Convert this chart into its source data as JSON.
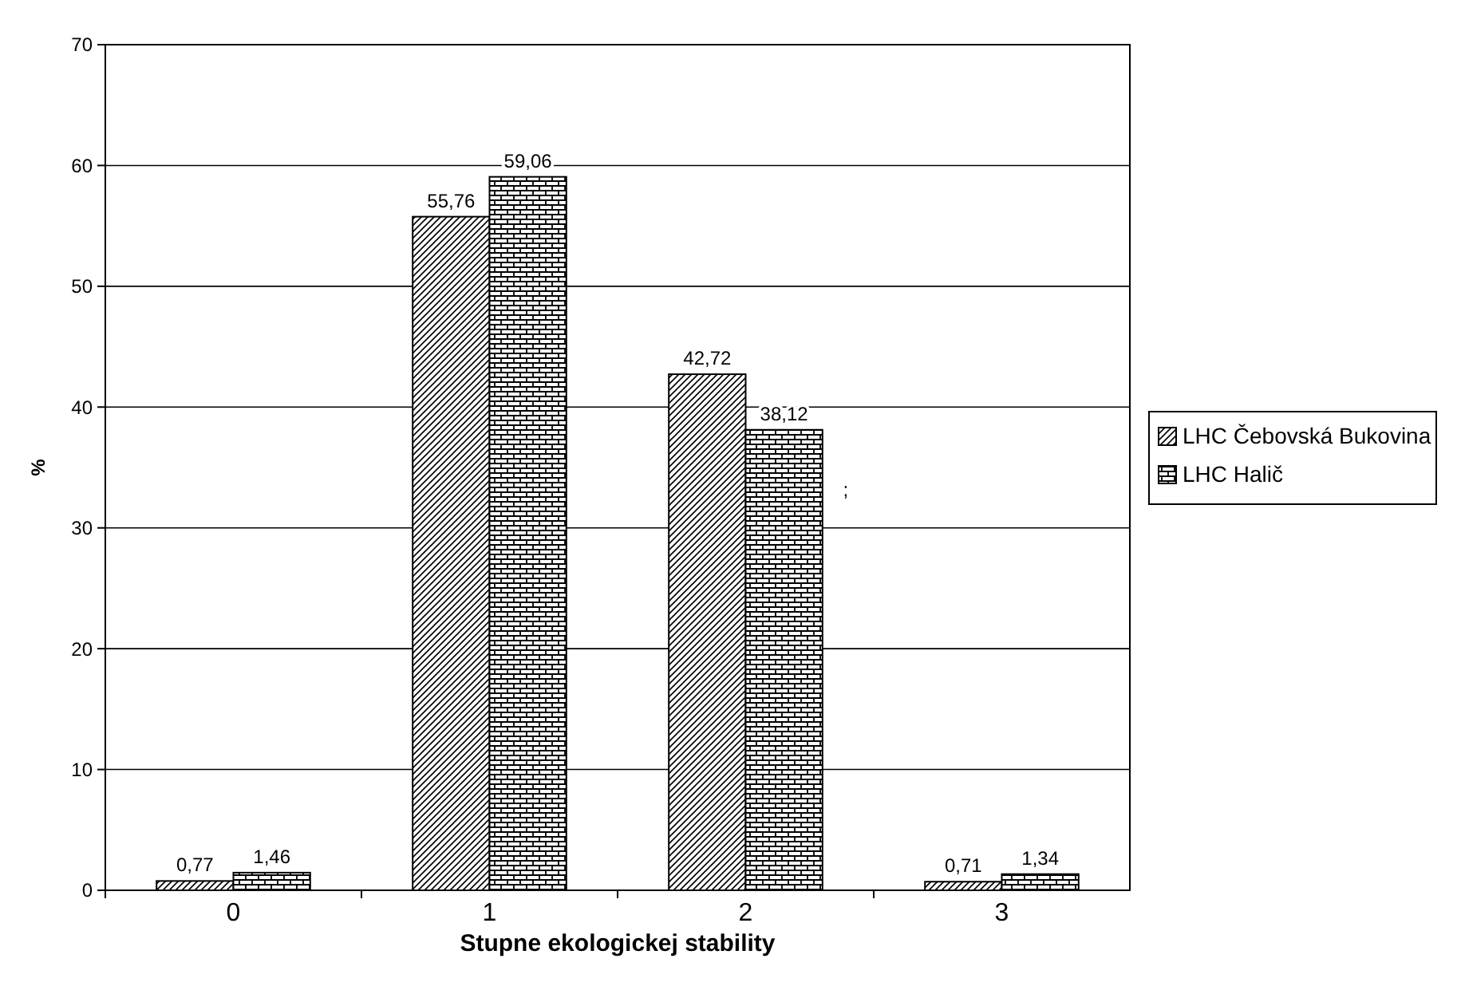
{
  "chart_data": {
    "type": "bar",
    "xlabel": "Stupne ekologickej stability",
    "ylabel": "%",
    "categories": [
      "0",
      "1",
      "2",
      "3"
    ],
    "ylim": [
      0,
      70
    ],
    "yticks": [
      0,
      10,
      20,
      30,
      40,
      50,
      60,
      70
    ],
    "grid": "y",
    "legend": "right",
    "data_labels": true,
    "series": [
      {
        "name": "LHC Čebovská Bukovina",
        "color": "#000000",
        "values": [
          0.77,
          55.76,
          42.72,
          0.71
        ],
        "value_labels": [
          "0,77",
          "55,76",
          "42,72",
          "0,71"
        ]
      },
      {
        "name": "LHC Halič",
        "color": "#000000",
        "values": [
          1.46,
          59.06,
          38.12,
          1.34
        ],
        "value_labels": [
          "1,46",
          "59,06",
          "38,12",
          "1,34"
        ]
      }
    ],
    "annotations": [
      ";"
    ]
  }
}
